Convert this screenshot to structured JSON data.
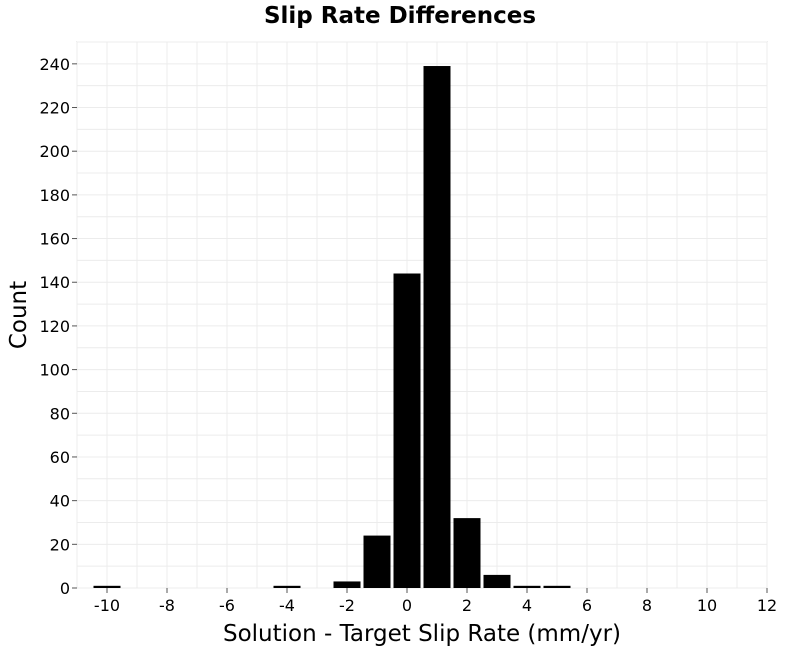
{
  "chart_data": {
    "type": "bar",
    "title": "Slip Rate Differences",
    "xlabel": "Solution - Target Slip Rate (mm/yr)",
    "ylabel": "Count",
    "xlim": [
      -11,
      12
    ],
    "ylim": [
      0,
      250
    ],
    "xticks": [
      -10,
      -8,
      -6,
      -4,
      -2,
      0,
      2,
      4,
      6,
      8,
      10,
      12
    ],
    "xtick_labels": [
      "-10",
      "-8",
      "-6",
      "-4",
      "-2",
      "0",
      "2",
      "4",
      "6",
      "8",
      "10",
      "12"
    ],
    "yticks": [
      0,
      20,
      40,
      60,
      80,
      100,
      120,
      140,
      160,
      180,
      200,
      220,
      240
    ],
    "ytick_labels": [
      "0",
      "20",
      "40",
      "60",
      "80",
      "100",
      "120",
      "140",
      "160",
      "180",
      "200",
      "220",
      "240"
    ],
    "bin_width": 1,
    "x": [
      -10,
      -9,
      -8,
      -7,
      -6,
      -5,
      -4,
      -3,
      -2,
      -1,
      0,
      1,
      2,
      3,
      4,
      5,
      6,
      7,
      8,
      9,
      10,
      11
    ],
    "values": [
      1,
      0,
      0,
      0,
      0,
      0,
      1,
      0,
      3,
      24,
      144,
      239,
      32,
      6,
      1,
      1,
      0,
      0,
      0,
      0,
      0,
      0
    ],
    "grid": true,
    "bar_color": "#000000",
    "bar_edge_color": "#ffffff"
  }
}
